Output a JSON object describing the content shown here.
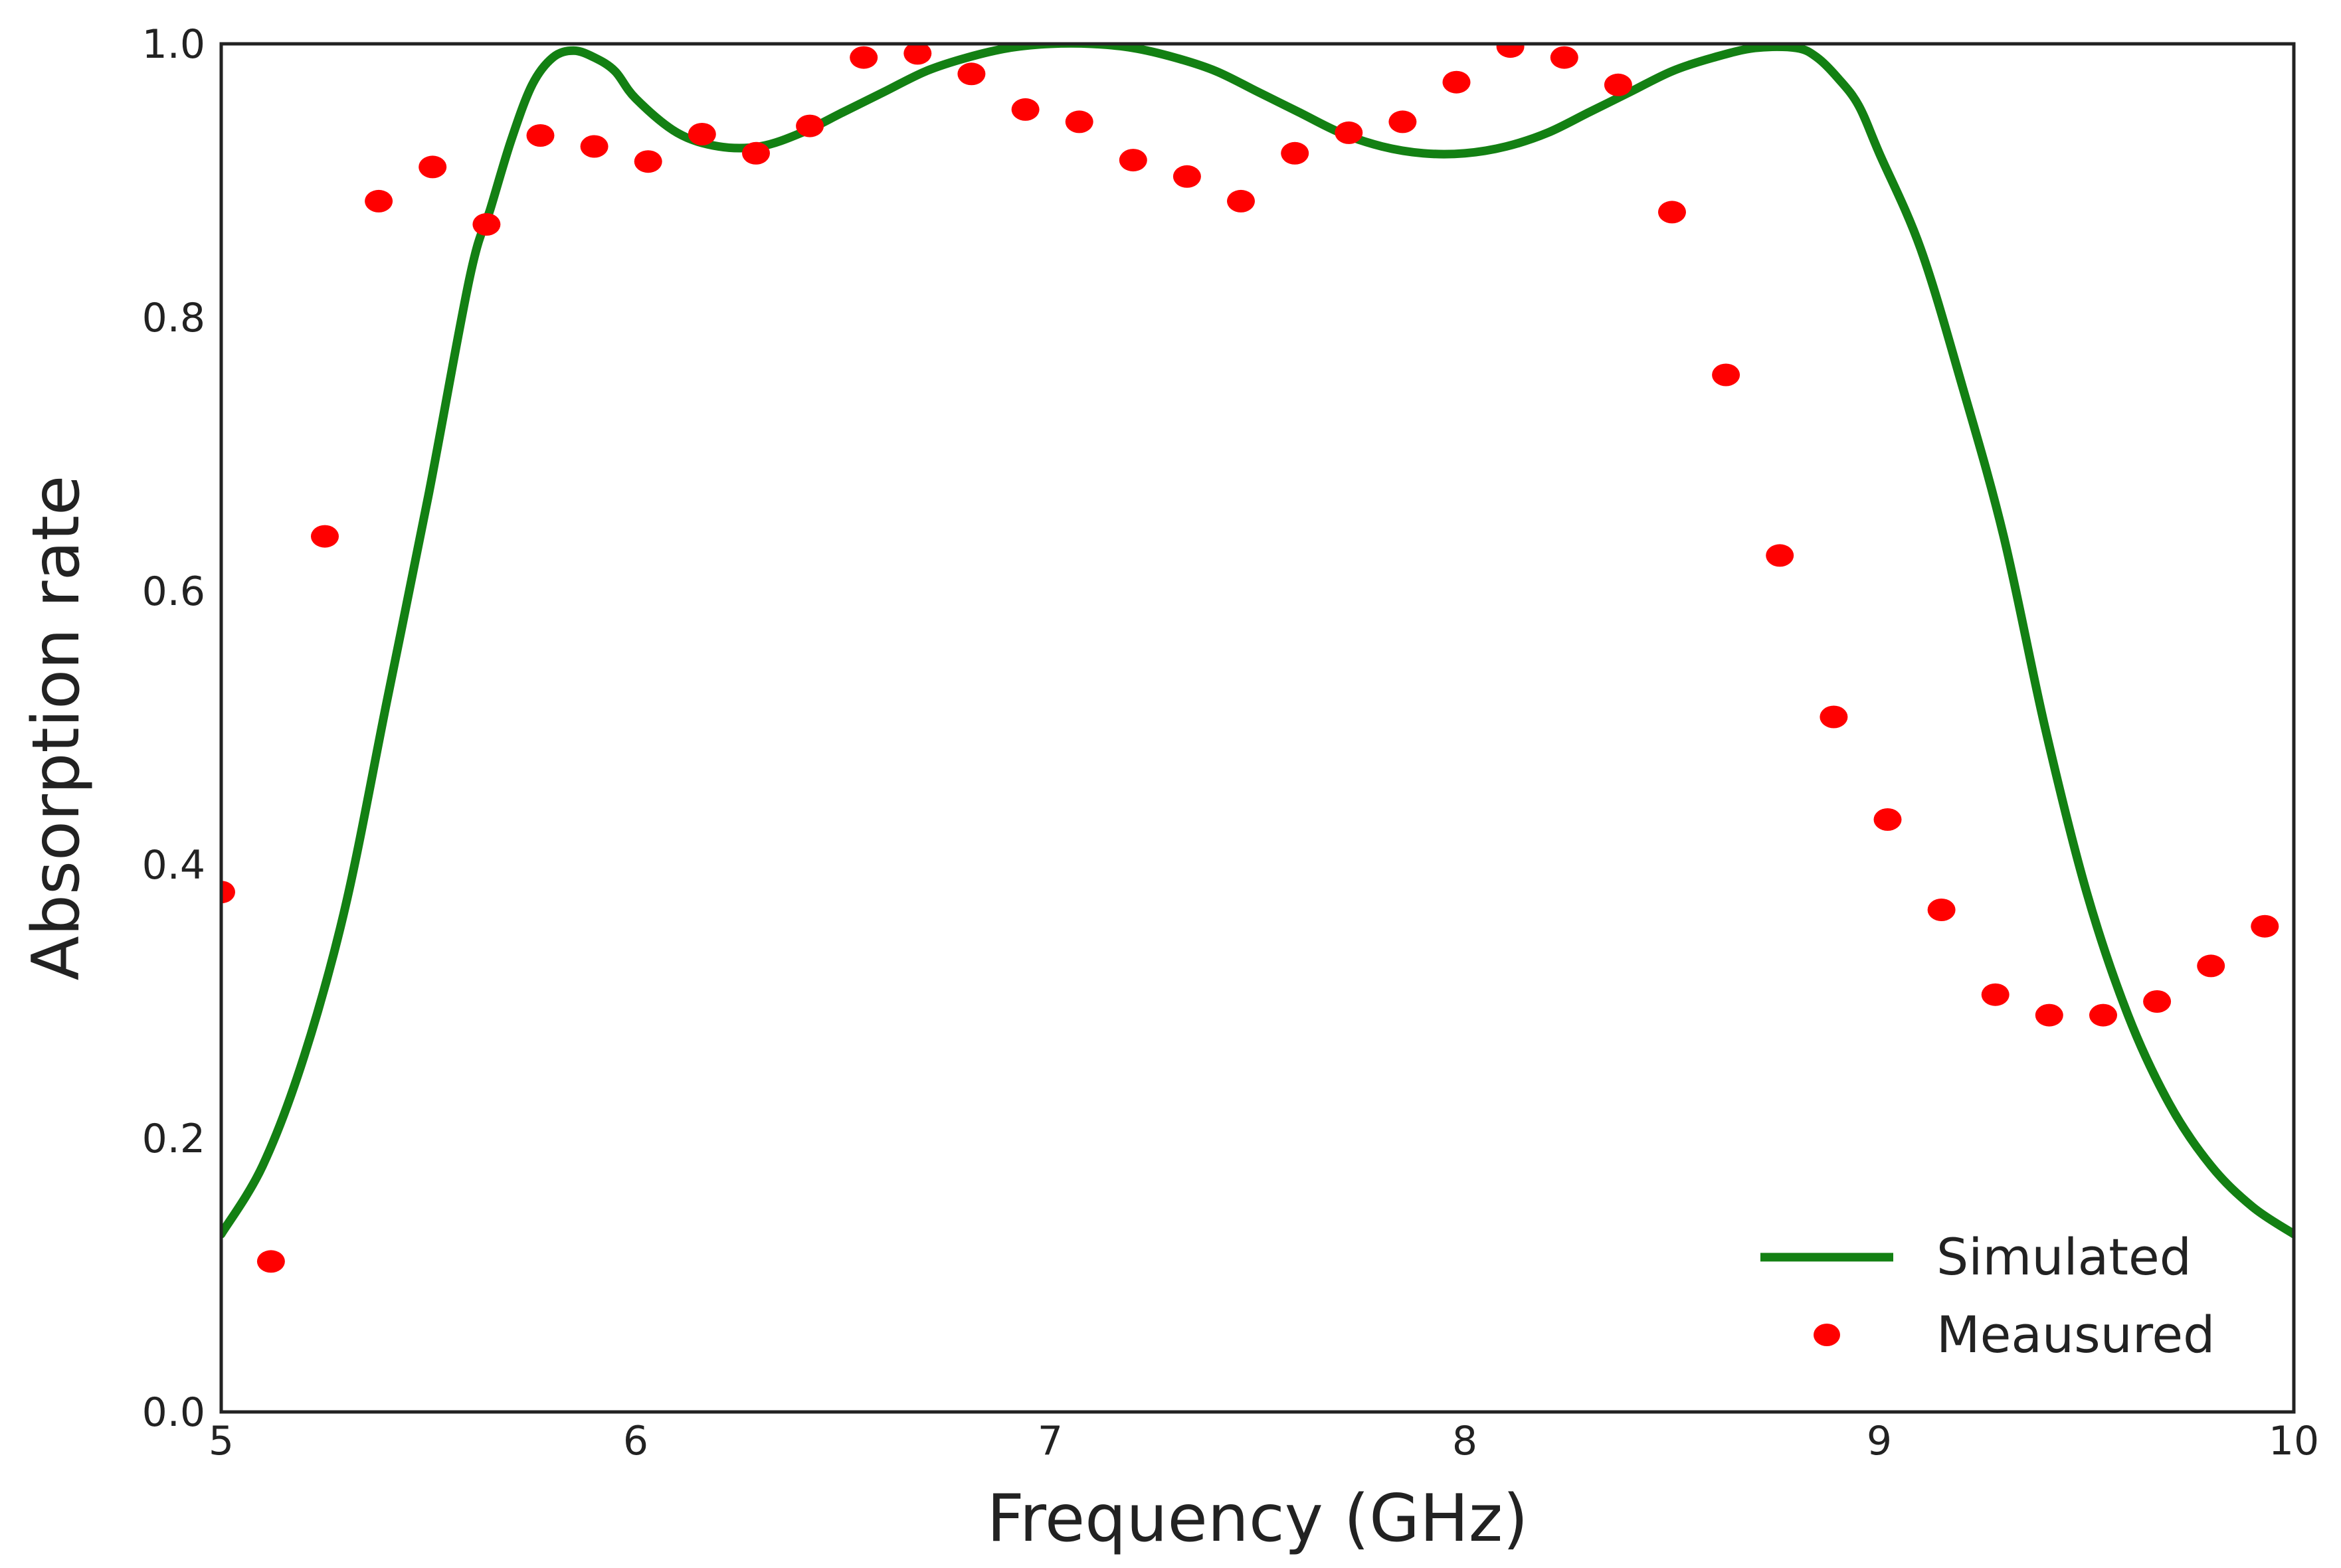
{
  "chart_data": {
    "type": "line",
    "xlabel": "Frequency (GHz)",
    "ylabel": "Absorption rate",
    "xlim": [
      5,
      10
    ],
    "ylim": [
      0.0,
      1.0
    ],
    "x_ticks": [
      5,
      6,
      7,
      8,
      9,
      10
    ],
    "x_tick_labels": [
      "5",
      "6",
      "7",
      "8",
      "9",
      "10"
    ],
    "y_ticks": [
      0.0,
      0.2,
      0.4,
      0.6,
      0.8,
      1.0
    ],
    "y_tick_labels": [
      "0.0",
      "0.2",
      "0.4",
      "0.6",
      "0.8",
      "1.0"
    ],
    "grid": false,
    "legend": {
      "position": "bottom-right",
      "entries": [
        {
          "label": "Simulated",
          "marker": "line",
          "color": "#138013"
        },
        {
          "label": "Meausured",
          "marker": "dot",
          "color": "#ff0000"
        }
      ]
    },
    "series": [
      {
        "name": "Simulated",
        "kind": "line",
        "color": "#138013",
        "x": [
          5.0,
          5.1,
          5.2,
          5.3,
          5.4,
          5.5,
          5.6,
          5.65,
          5.7,
          5.75,
          5.8,
          5.85,
          5.9,
          5.95,
          6.0,
          6.1,
          6.2,
          6.3,
          6.4,
          6.5,
          6.6,
          6.7,
          6.8,
          6.9,
          7.0,
          7.1,
          7.2,
          7.3,
          7.4,
          7.5,
          7.6,
          7.7,
          7.8,
          7.9,
          8.0,
          8.1,
          8.2,
          8.3,
          8.4,
          8.5,
          8.6,
          8.7,
          8.8,
          8.85,
          8.9,
          8.95,
          9.0,
          9.1,
          9.2,
          9.3,
          9.4,
          9.5,
          9.6,
          9.7,
          9.8,
          9.9,
          10.0
        ],
        "y": [
          0.13,
          0.18,
          0.26,
          0.37,
          0.52,
          0.67,
          0.83,
          0.88,
          0.93,
          0.97,
          0.99,
          0.995,
          0.99,
          0.98,
          0.96,
          0.935,
          0.925,
          0.925,
          0.935,
          0.95,
          0.965,
          0.98,
          0.99,
          0.997,
          1.0,
          1.0,
          0.997,
          0.99,
          0.98,
          0.965,
          0.95,
          0.935,
          0.925,
          0.92,
          0.92,
          0.925,
          0.935,
          0.95,
          0.965,
          0.98,
          0.99,
          0.997,
          0.997,
          0.99,
          0.975,
          0.955,
          0.92,
          0.85,
          0.75,
          0.64,
          0.5,
          0.38,
          0.29,
          0.225,
          0.18,
          0.15,
          0.13
        ]
      },
      {
        "name": "Meausured",
        "kind": "scatter",
        "color": "#ff0000",
        "x": [
          5.0,
          5.12,
          5.25,
          5.38,
          5.51,
          5.64,
          5.77,
          5.9,
          6.03,
          6.16,
          6.29,
          6.42,
          6.55,
          6.68,
          6.81,
          6.94,
          7.07,
          7.2,
          7.33,
          7.46,
          7.59,
          7.72,
          7.85,
          7.98,
          8.11,
          8.24,
          8.37,
          8.5,
          8.63,
          8.76,
          8.89,
          9.02,
          9.15,
          9.28,
          9.41,
          9.54,
          9.67,
          9.8,
          9.93
        ],
        "y": [
          0.38,
          0.11,
          0.64,
          0.885,
          0.91,
          0.868,
          0.933,
          0.925,
          0.914,
          0.934,
          0.92,
          0.94,
          0.99,
          0.993,
          0.978,
          0.952,
          0.943,
          0.915,
          0.903,
          0.885,
          0.92,
          0.935,
          0.943,
          0.972,
          0.998,
          0.99,
          0.97,
          0.877,
          0.758,
          0.626,
          0.508,
          0.433,
          0.367,
          0.305,
          0.29,
          0.29,
          0.3,
          0.326,
          0.355
        ]
      }
    ]
  }
}
